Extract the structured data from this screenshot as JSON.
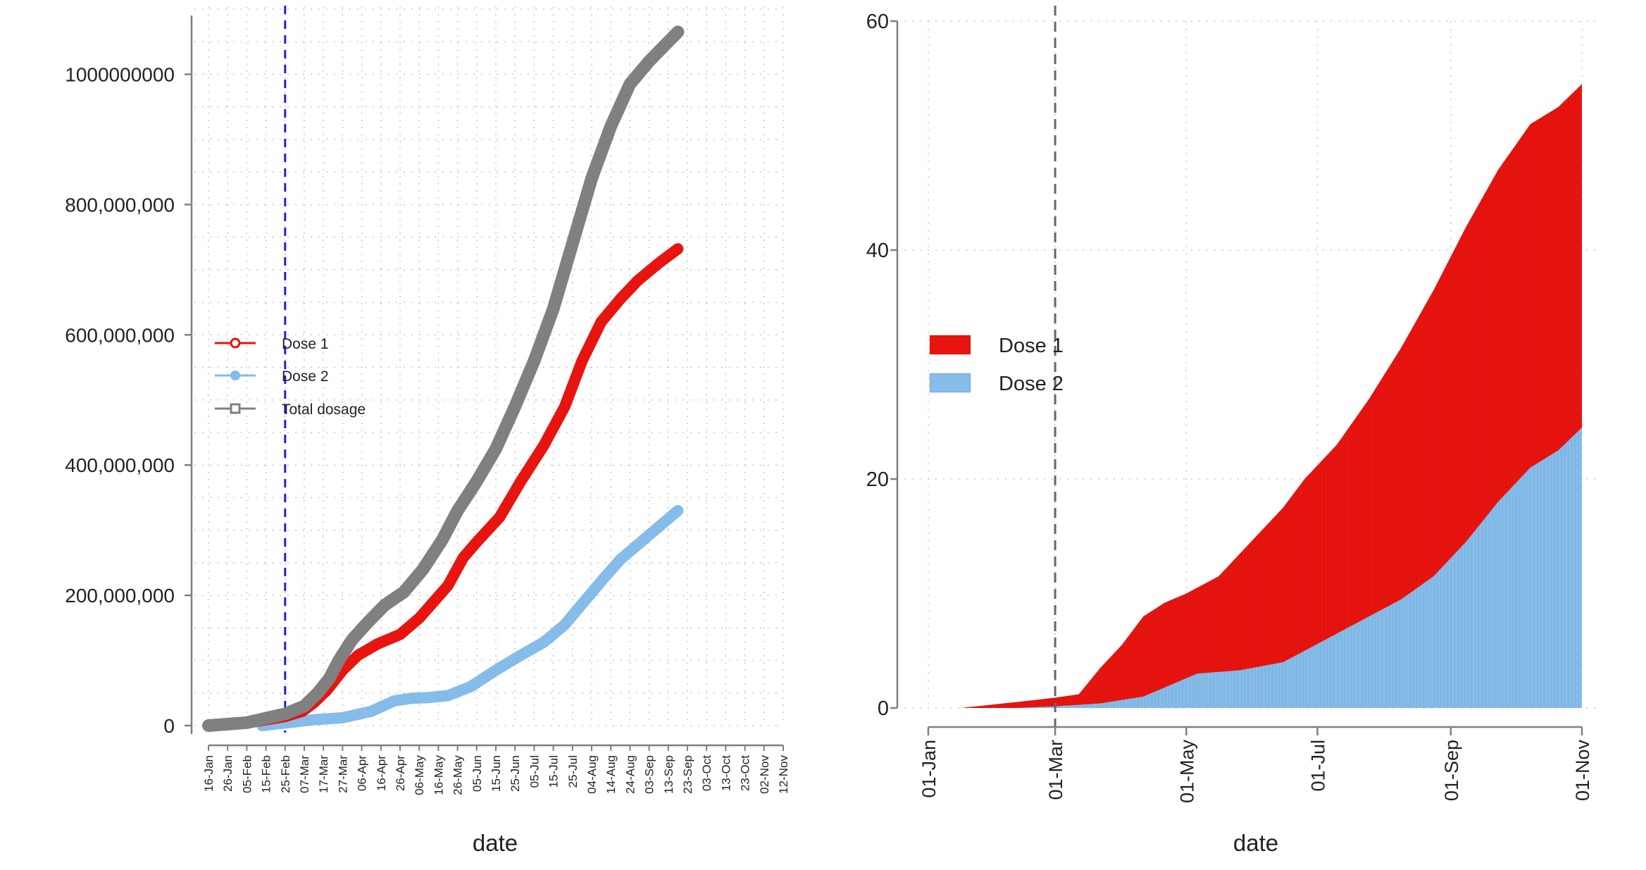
{
  "colors": {
    "dose1": "#e8140f",
    "dose2": "#85bce9",
    "total": "#808080",
    "axis": "#7f7f7f",
    "grid": "#c8c8c8",
    "vline_left": "#1f1fe0",
    "vline_right": "#666666",
    "text": "#222222"
  },
  "chart_data": [
    {
      "type": "line",
      "xlabel": "date",
      "ylabel": "",
      "ylim": [
        0,
        1060000000
      ],
      "y_ticks": [
        {
          "value": 0,
          "label": "0"
        },
        {
          "value": 200000000,
          "label": "200,000,000"
        },
        {
          "value": 400000000,
          "label": "400,000,000"
        },
        {
          "value": 600000000,
          "label": "600,000,000"
        },
        {
          "value": 800000000,
          "label": "800,000,000"
        },
        {
          "value": 1000000000,
          "label": "1000000000"
        }
      ],
      "x_ticks": [
        "16-Jan",
        "26-Jan",
        "05-Feb",
        "15-Feb",
        "25-Feb",
        "07-Mar",
        "17-Mar",
        "27-Mar",
        "06-Apr",
        "16-Apr",
        "26-Apr",
        "06-May",
        "16-May",
        "26-May",
        "05-Jun",
        "15-Jun",
        "25-Jun",
        "05-Jul",
        "15-Jul",
        "25-Jul",
        "04-Aug",
        "14-Aug",
        "24-Aug",
        "03-Sep",
        "13-Sep",
        "23-Sep",
        "03-Oct",
        "13-Oct",
        "23-Oct",
        "02-Nov",
        "12-Nov"
      ],
      "x_note": "x values are days since 16-Jan",
      "vline_day": 40,
      "legend_position": "middle-left",
      "series": [
        {
          "name": "Dose 1",
          "key": "dose1",
          "marker": "circle-open",
          "points": [
            [
              0,
              0
            ],
            [
              20,
              4000000
            ],
            [
              40,
              14000000
            ],
            [
              49,
              22000000
            ],
            [
              55,
              35000000
            ],
            [
              62,
              55000000
            ],
            [
              70,
              85000000
            ],
            [
              78,
              108000000
            ],
            [
              88,
              125000000
            ],
            [
              100,
              140000000
            ],
            [
              110,
              165000000
            ],
            [
              125,
              215000000
            ],
            [
              133,
              258000000
            ],
            [
              141,
              285000000
            ],
            [
              152,
              320000000
            ],
            [
              163,
              375000000
            ],
            [
              175,
              430000000
            ],
            [
              186,
              490000000
            ],
            [
              195,
              560000000
            ],
            [
              205,
              620000000
            ],
            [
              215,
              655000000
            ],
            [
              224,
              683000000
            ],
            [
              235,
              710000000
            ],
            [
              245,
              732000000
            ]
          ]
        },
        {
          "name": "Dose 2",
          "key": "dose2",
          "marker": "circle-filled",
          "points": [
            [
              28,
              0
            ],
            [
              40,
              4000000
            ],
            [
              55,
              9000000
            ],
            [
              70,
              12000000
            ],
            [
              85,
              22000000
            ],
            [
              97,
              38000000
            ],
            [
              106,
              42000000
            ],
            [
              115,
              43000000
            ],
            [
              125,
              46000000
            ],
            [
              137,
              60000000
            ],
            [
              150,
              85000000
            ],
            [
              163,
              108000000
            ],
            [
              175,
              128000000
            ],
            [
              186,
              155000000
            ],
            [
              196,
              190000000
            ],
            [
              206,
              225000000
            ],
            [
              215,
              255000000
            ],
            [
              225,
              280000000
            ],
            [
              235,
              305000000
            ],
            [
              245,
              330000000
            ]
          ]
        },
        {
          "name": "Total dosage",
          "key": "total",
          "marker": "square-open",
          "points": [
            [
              0,
              0
            ],
            [
              20,
              4500000
            ],
            [
              40,
              18000000
            ],
            [
              50,
              30000000
            ],
            [
              57,
              50000000
            ],
            [
              63,
              72000000
            ],
            [
              68,
              100000000
            ],
            [
              75,
              132000000
            ],
            [
              83,
              158000000
            ],
            [
              92,
              185000000
            ],
            [
              102,
              205000000
            ],
            [
              112,
              240000000
            ],
            [
              122,
              285000000
            ],
            [
              130,
              330000000
            ],
            [
              140,
              375000000
            ],
            [
              150,
              425000000
            ],
            [
              160,
              490000000
            ],
            [
              170,
              560000000
            ],
            [
              180,
              640000000
            ],
            [
              190,
              740000000
            ],
            [
              200,
              840000000
            ],
            [
              210,
              920000000
            ],
            [
              220,
              985000000
            ],
            [
              230,
              1020000000
            ],
            [
              245,
              1065000000
            ]
          ]
        }
      ]
    },
    {
      "type": "area",
      "stacked": false,
      "xlabel": "date",
      "ylabel": "",
      "ylim": [
        0,
        60
      ],
      "y_ticks": [
        0,
        20,
        40,
        60
      ],
      "x_ticks": [
        "01-Jan",
        "01-Mar",
        "01-May",
        "01-Jul",
        "01-Sep",
        "01-Nov"
      ],
      "x_note": "x values are days since 01-Jan",
      "vline_day": 59,
      "legend_position": "middle-left",
      "series": [
        {
          "name": "Dose 1",
          "key": "dose1",
          "points": [
            [
              15,
              0
            ],
            [
              30,
              0.3
            ],
            [
              45,
              0.6
            ],
            [
              59,
              0.9
            ],
            [
              70,
              1.2
            ],
            [
              80,
              3.5
            ],
            [
              90,
              5.5
            ],
            [
              100,
              8.0
            ],
            [
              110,
              9.2
            ],
            [
              120,
              10.0
            ],
            [
              135,
              11.5
            ],
            [
              150,
              14.5
            ],
            [
              165,
              17.5
            ],
            [
              175,
              20.0
            ],
            [
              190,
              23.0
            ],
            [
              205,
              27.0
            ],
            [
              220,
              31.5
            ],
            [
              235,
              36.5
            ],
            [
              250,
              42.0
            ],
            [
              265,
              47.0
            ],
            [
              280,
              51.0
            ],
            [
              293,
              52.5
            ],
            [
              304,
              54.5
            ]
          ]
        },
        {
          "name": "Dose 2",
          "key": "dose2",
          "points": [
            [
              40,
              0
            ],
            [
              59,
              0.15
            ],
            [
              80,
              0.4
            ],
            [
              100,
              1.0
            ],
            [
              115,
              2.2
            ],
            [
              125,
              3.0
            ],
            [
              145,
              3.3
            ],
            [
              165,
              4.0
            ],
            [
              180,
              5.5
            ],
            [
              200,
              7.5
            ],
            [
              220,
              9.5
            ],
            [
              235,
              11.5
            ],
            [
              250,
              14.5
            ],
            [
              265,
              18.0
            ],
            [
              280,
              21.0
            ],
            [
              293,
              22.5
            ],
            [
              304,
              24.5
            ]
          ]
        }
      ]
    }
  ]
}
